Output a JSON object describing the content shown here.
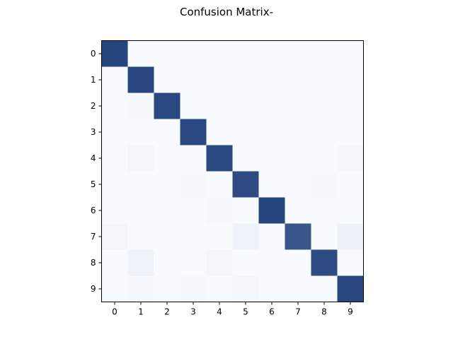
{
  "chart_data": {
    "type": "heatmap",
    "title": "Confusion Matrix-",
    "xlabel": "",
    "ylabel": "",
    "x_categories": [
      "0",
      "1",
      "2",
      "3",
      "4",
      "5",
      "6",
      "7",
      "8",
      "9"
    ],
    "y_categories": [
      "0",
      "1",
      "2",
      "3",
      "4",
      "5",
      "6",
      "7",
      "8",
      "9"
    ],
    "colormap": "Blues",
    "color_low": "#f7fbff",
    "color_high": "#1f3f7a",
    "matrix": [
      [
        0.97,
        0,
        0,
        0,
        0,
        0,
        0,
        0,
        0,
        0
      ],
      [
        0,
        0.96,
        0,
        0,
        0,
        0,
        0,
        0,
        0,
        0
      ],
      [
        0,
        0.01,
        0.95,
        0,
        0,
        0,
        0,
        0,
        0,
        0
      ],
      [
        0,
        0,
        0,
        0.95,
        0,
        0,
        0,
        0,
        0,
        0
      ],
      [
        0,
        0.02,
        0,
        0,
        0.95,
        0,
        0,
        0,
        0,
        0.01
      ],
      [
        0,
        0,
        0,
        0.01,
        0,
        0.93,
        0,
        0,
        0.01,
        0
      ],
      [
        0,
        0,
        0,
        0,
        0.01,
        0,
        0.97,
        0,
        0,
        0
      ],
      [
        0.02,
        0,
        0,
        0,
        0,
        0.04,
        0,
        0.88,
        0,
        0.05
      ],
      [
        0,
        0.04,
        0,
        0,
        0.02,
        0,
        0,
        0,
        0.93,
        0
      ],
      [
        0,
        0.01,
        0,
        0.01,
        0,
        0.02,
        0,
        0,
        0,
        0.96
      ]
    ]
  }
}
